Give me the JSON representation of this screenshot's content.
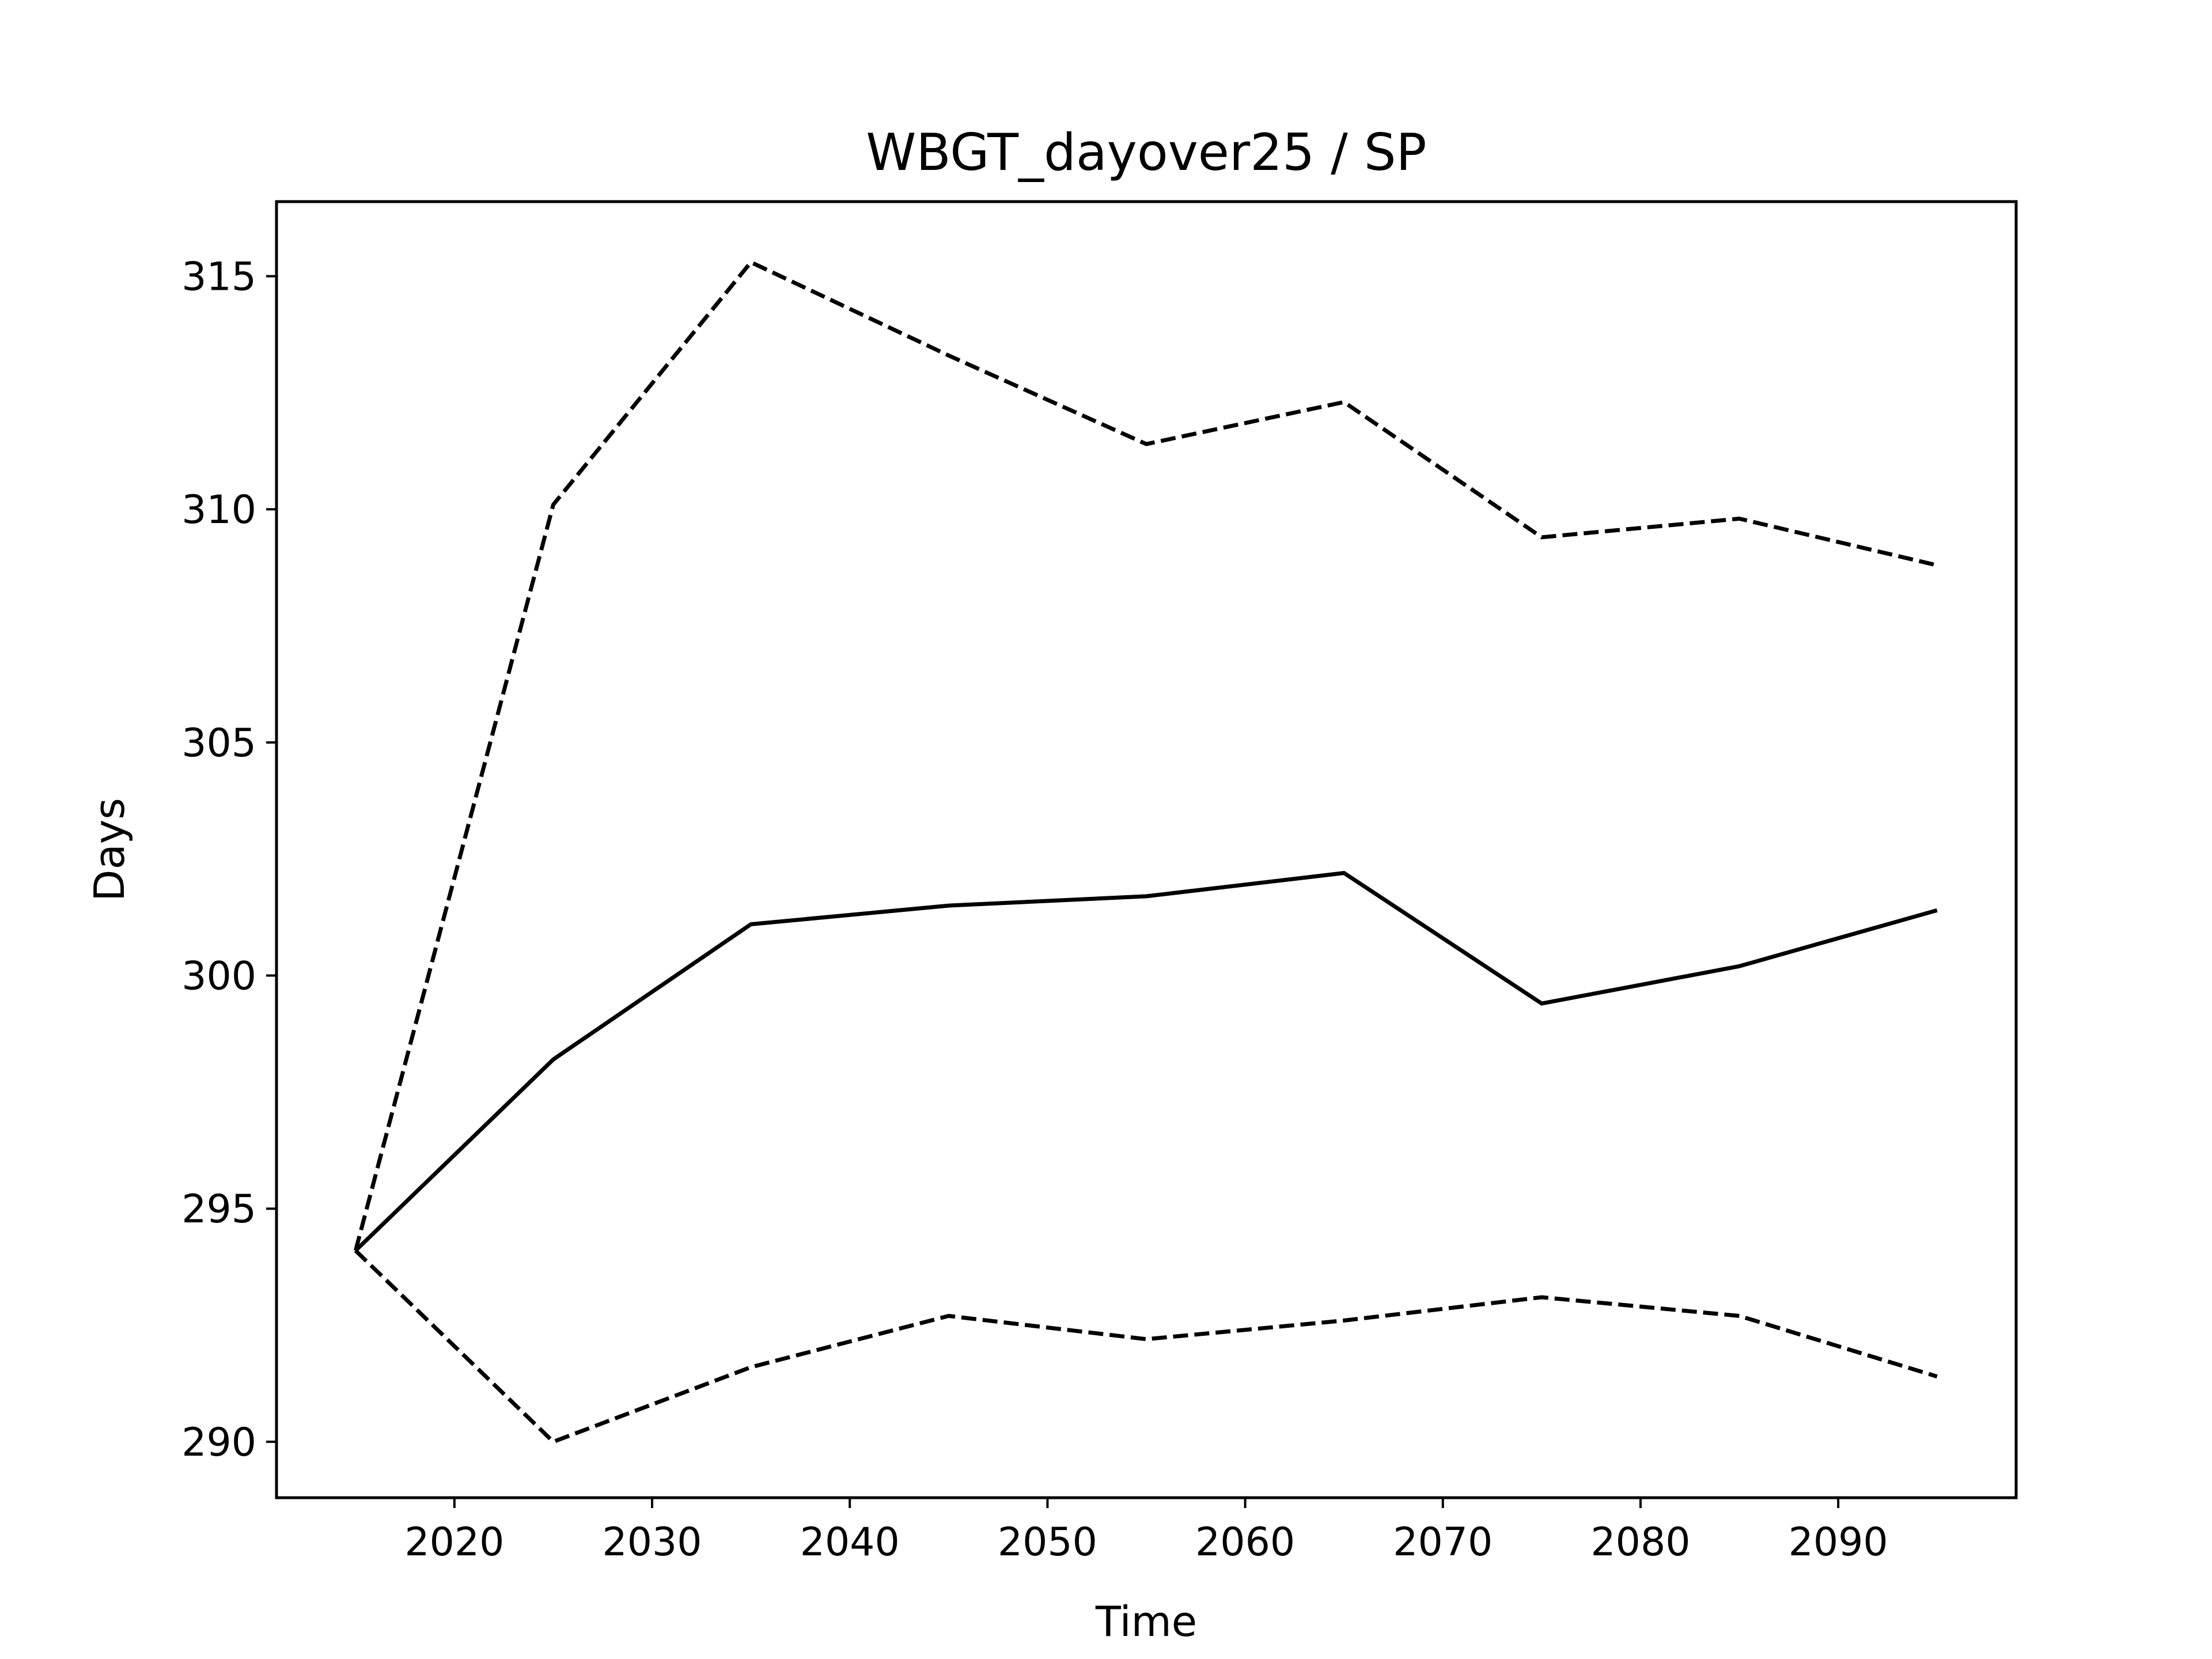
{
  "chart_data": {
    "type": "line",
    "title": "WBGT_dayover25 / SP",
    "xlabel": "Time",
    "ylabel": "Days",
    "x": [
      2015,
      2025,
      2035,
      2045,
      2055,
      2065,
      2075,
      2085,
      2095
    ],
    "xlim": [
      2011,
      2099
    ],
    "ylim": [
      288.8,
      316.6
    ],
    "xticks": [
      "2020",
      "2030",
      "2040",
      "2050",
      "2060",
      "2070",
      "2080",
      "2090"
    ],
    "yticks": [
      "290",
      "295",
      "300",
      "305",
      "310",
      "315"
    ],
    "grid": false,
    "legend": "none",
    "color": "#000000",
    "series": [
      {
        "style": "solid",
        "values": [
          294.1,
          298.2,
          301.1,
          301.5,
          301.7,
          302.2,
          299.4,
          300.2,
          301.4
        ]
      },
      {
        "style": "dashed",
        "values": [
          294.1,
          310.1,
          315.3,
          313.3,
          311.4,
          312.3,
          309.4,
          309.8,
          308.8
        ]
      },
      {
        "style": "dashed",
        "values": [
          294.1,
          290.0,
          291.6,
          292.7,
          292.2,
          292.6,
          293.1,
          292.7,
          291.4
        ]
      }
    ]
  }
}
